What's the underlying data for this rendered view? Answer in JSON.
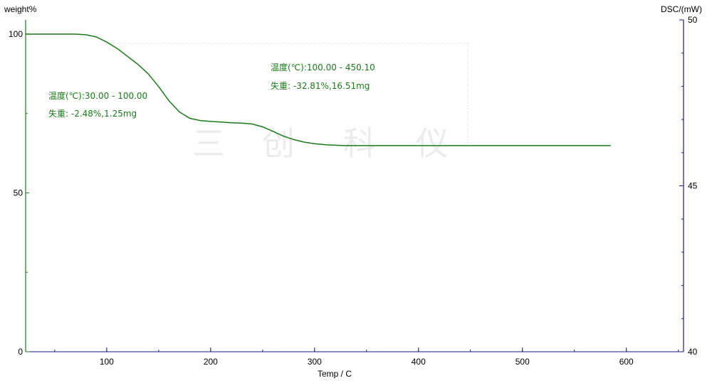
{
  "chart_data": {
    "type": "line",
    "xlabel": "Temp / C",
    "ylabel_left": "weight%",
    "ylabel_right": "DSC/(mW)",
    "xlim": [
      22,
      655
    ],
    "ylim_left": [
      0,
      100
    ],
    "ylim_right": [
      40,
      50
    ],
    "x_ticks": [
      100,
      200,
      300,
      400,
      500,
      600
    ],
    "y_left_ticks": [
      0,
      50,
      100
    ],
    "y_right_ticks": [
      40,
      45,
      50
    ],
    "grid": false,
    "colors": {
      "tg": "#1a7a1a",
      "right_axis": "#1a1a8a",
      "left_axis": "#1a7a1a",
      "watermark": "#ececec",
      "box": "#dddddd"
    },
    "watermark": [
      "三",
      "创",
      "科",
      "仪"
    ],
    "series": [
      {
        "x": [
          22,
          50,
          70,
          80,
          90,
          100,
          110,
          120,
          130,
          140,
          150,
          160,
          170,
          180,
          190,
          200,
          210,
          220,
          230,
          240,
          250,
          260,
          270,
          280,
          290,
          300,
          310,
          320,
          330,
          350,
          400,
          450,
          500,
          550,
          585
        ],
        "y": [
          100,
          100,
          100,
          99.8,
          99.1,
          97.5,
          95.5,
          93.0,
          90.5,
          87.5,
          83.5,
          79.0,
          75.5,
          73.5,
          72.8,
          72.5,
          72.3,
          72.1,
          72.0,
          71.7,
          70.8,
          69.4,
          67.9,
          66.8,
          66.0,
          65.5,
          65.2,
          65.0,
          64.9,
          64.9,
          64.9,
          64.9,
          64.9,
          64.9,
          64.9
        ]
      }
    ],
    "annotations": [
      {
        "range": "温度(℃):30.00 - 100.00",
        "loss": "失重:  -2.48%,1.25mg"
      },
      {
        "range": "温度(℃):100.00 - 450.10",
        "loss": "失重:  -32.81%,16.51mg"
      }
    ]
  }
}
